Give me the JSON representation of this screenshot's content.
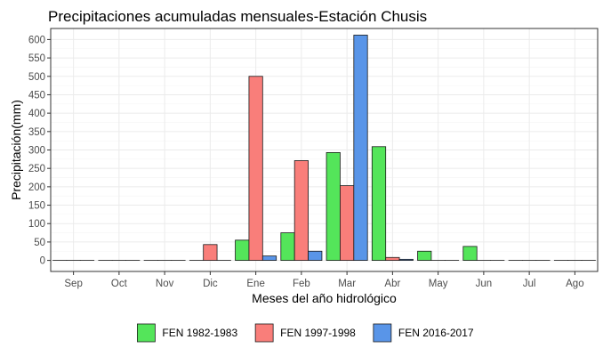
{
  "chart_data": {
    "type": "bar",
    "title": "Precipitaciones acumuladas mensuales-Estación Chusis",
    "xlabel": "Meses del año hidrológico",
    "ylabel": "Precipitación(mm)",
    "categories": [
      "Sep",
      "Oct",
      "Nov",
      "Dic",
      "Ene",
      "Feb",
      "Mar",
      "Abr",
      "May",
      "Jun",
      "Jul",
      "Ago"
    ],
    "ylim": [
      -30,
      630
    ],
    "yticks": [
      0,
      50,
      100,
      150,
      200,
      250,
      300,
      350,
      400,
      450,
      500,
      550,
      600
    ],
    "grid": true,
    "legend_position": "bottom",
    "series": [
      {
        "name": "FEN 1982-1983",
        "color": "#54e55a",
        "values": [
          0,
          0,
          0,
          0,
          55,
          75,
          293,
          309,
          25,
          38,
          0,
          0
        ]
      },
      {
        "name": "FEN 1997-1998",
        "color": "#f97e7a",
        "values": [
          0,
          0,
          0,
          43,
          500,
          271,
          203,
          8,
          0,
          0,
          0,
          0
        ]
      },
      {
        "name": "FEN 2016-2017",
        "color": "#5995e8",
        "values": [
          0,
          0,
          0,
          0,
          12,
          25,
          612,
          3,
          0,
          0,
          0,
          0
        ]
      }
    ]
  }
}
